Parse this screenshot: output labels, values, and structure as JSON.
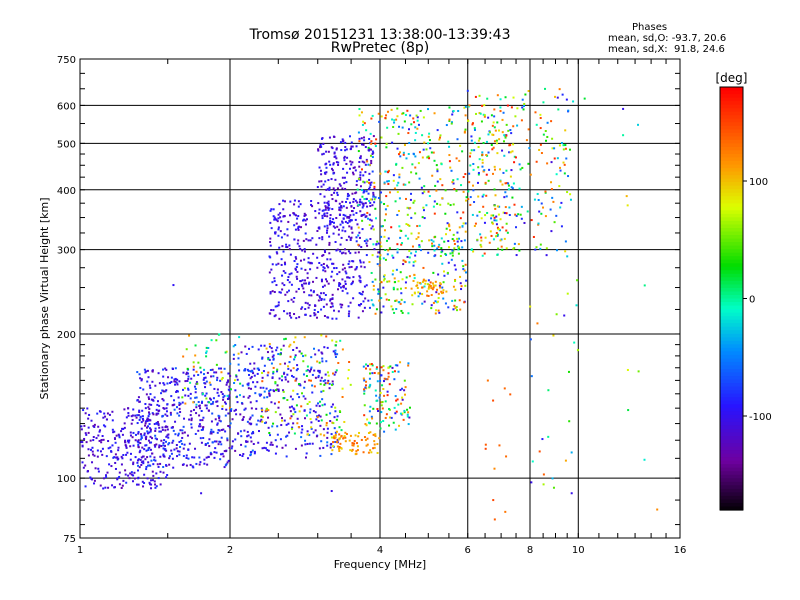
{
  "title_line1": "Tromsø 20151231 13:38:00-13:39:43",
  "title_line2": "RwPretec (8p)",
  "phases": {
    "label": "Phases",
    "o_line": "mean, sd,O: -93.7, 20.6",
    "x_line": "mean, sd,X:  91.8, 24.6"
  },
  "chart_data": {
    "type": "scatter",
    "title": "Tromsø 20151231 13:38:00-13:39:43",
    "subtitle": "RwPretec (8p)",
    "xlabel": "Frequency [MHz]",
    "ylabel": "Stationary phase Virtual Height [km]",
    "xscale": "log",
    "yscale": "log",
    "xlim": [
      1,
      16
    ],
    "ylim": [
      75,
      750
    ],
    "x_ticks": [
      1,
      2,
      4,
      6,
      8,
      10,
      16
    ],
    "x_tick_labels": [
      "1",
      "2",
      "4",
      "6",
      "8",
      "10",
      "16"
    ],
    "y_ticks": [
      75,
      100,
      200,
      300,
      400,
      500,
      600,
      750
    ],
    "y_tick_labels": [
      "75",
      "100",
      "200",
      "300",
      "400",
      "500",
      "600",
      "750"
    ],
    "grid": true,
    "colorbar": {
      "label": "[deg]",
      "min": -180,
      "max": 180,
      "ticks": [
        100,
        0,
        -100
      ],
      "tick_labels": [
        "100",
        "0",
        "-100"
      ],
      "colormap": "rainbow"
    },
    "point_clusters": [
      {
        "x_range": [
          1.0,
          1.5
        ],
        "y_range": [
          95,
          140
        ],
        "phase_range": [
          -130,
          -80
        ],
        "count": 300
      },
      {
        "x_range": [
          1.3,
          2.0
        ],
        "y_range": [
          105,
          170
        ],
        "phase_range": [
          -130,
          -60
        ],
        "count": 450
      },
      {
        "x_range": [
          1.6,
          2.1
        ],
        "y_range": [
          140,
          200
        ],
        "phase_range": [
          -40,
          130
        ],
        "count": 50
      },
      {
        "x_range": [
          2.0,
          3.3
        ],
        "y_range": [
          110,
          190
        ],
        "phase_range": [
          -130,
          -50
        ],
        "count": 380
      },
      {
        "x_range": [
          2.3,
          3.5
        ],
        "y_range": [
          120,
          200
        ],
        "phase_range": [
          0,
          150
        ],
        "count": 120
      },
      {
        "x_range": [
          3.2,
          4.0
        ],
        "y_range": [
          112,
          125
        ],
        "phase_range": [
          90,
          140
        ],
        "count": 70
      },
      {
        "x_range": [
          3.7,
          4.6
        ],
        "y_range": [
          125,
          175
        ],
        "phase_range": [
          -120,
          170
        ],
        "count": 130
      },
      {
        "x_range": [
          2.4,
          3.8
        ],
        "y_range": [
          215,
          380
        ],
        "phase_range": [
          -130,
          -80
        ],
        "count": 450
      },
      {
        "x_range": [
          3.0,
          3.9
        ],
        "y_range": [
          330,
          520
        ],
        "phase_range": [
          -130,
          -80
        ],
        "count": 250
      },
      {
        "x_range": [
          3.8,
          6.0
        ],
        "y_range": [
          220,
          320
        ],
        "phase_range": [
          -120,
          150
        ],
        "count": 220
      },
      {
        "x_range": [
          4.6,
          5.4
        ],
        "y_range": [
          240,
          260
        ],
        "phase_range": [
          90,
          140
        ],
        "count": 40
      },
      {
        "x_range": [
          3.6,
          7.5
        ],
        "y_range": [
          300,
          600
        ],
        "phase_range": [
          -100,
          175
        ],
        "count": 450
      },
      {
        "x_range": [
          6.0,
          9.8
        ],
        "y_range": [
          290,
          650
        ],
        "phase_range": [
          -110,
          170
        ],
        "count": 220
      },
      {
        "x_range": [
          6.5,
          7.5
        ],
        "y_range": [
          80,
          180
        ],
        "phase_range": [
          120,
          160
        ],
        "count": 10
      },
      {
        "x_range": [
          8.0,
          10.0
        ],
        "y_range": [
          95,
          260
        ],
        "phase_range": [
          -100,
          150
        ],
        "count": 25
      },
      {
        "x_range": [
          12.5,
          14.5
        ],
        "y_range": [
          83,
          600
        ],
        "phase_range": [
          -40,
          120
        ],
        "count": 8
      }
    ],
    "notable_points": [
      {
        "x": 1.54,
        "y": 253,
        "phase": -95
      },
      {
        "x": 1.75,
        "y": 93,
        "phase": -100
      },
      {
        "x": 3.2,
        "y": 94,
        "phase": -100
      },
      {
        "x": 6.8,
        "y": 82,
        "phase": 140
      },
      {
        "x": 6.75,
        "y": 90,
        "phase": 150
      },
      {
        "x": 8.05,
        "y": 98,
        "phase": -100
      },
      {
        "x": 9.7,
        "y": 93,
        "phase": -100
      },
      {
        "x": 10.3,
        "y": 620,
        "phase": 20
      },
      {
        "x": 12.3,
        "y": 520,
        "phase": 0
      },
      {
        "x": 12.3,
        "y": 590,
        "phase": -100
      },
      {
        "x": 14.4,
        "y": 86,
        "phase": 120
      }
    ]
  }
}
